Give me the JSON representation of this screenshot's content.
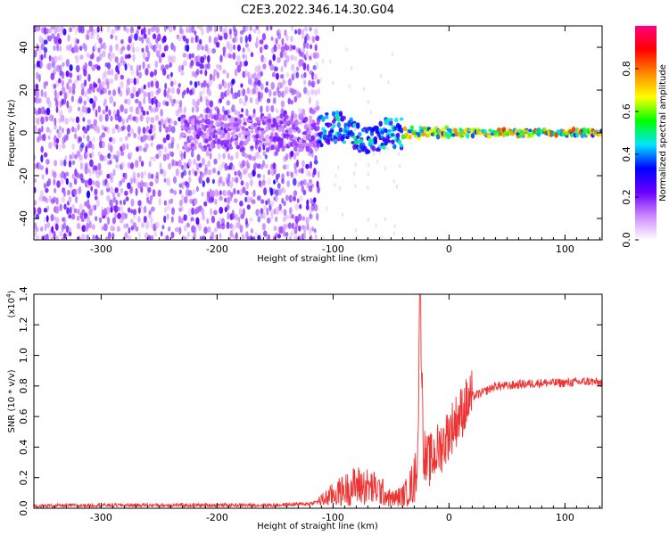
{
  "title": "C2E3.2022.346.14.30.G04",
  "chart_data": [
    {
      "type": "heatmap",
      "xlabel": "Height of straight line (km)",
      "ylabel": "Frequency (Hz)",
      "xlim": [
        -358,
        132
      ],
      "ylim": [
        -50,
        50
      ],
      "x_ticks": [
        -300,
        -200,
        -100,
        0,
        100
      ],
      "y_ticks": [
        -40,
        -20,
        0,
        20,
        40
      ],
      "colorbar": {
        "label": "Normalized spectral amplitude",
        "range": [
          0,
          1
        ],
        "ticks": [
          "0.0",
          "0.2",
          "0.4",
          "0.6",
          "0.8"
        ],
        "colors": [
          "#ffffff",
          "#cc88ff",
          "#6a00ff",
          "#0000ff",
          "#00e5ff",
          "#00ff00",
          "#ffff00",
          "#ff8800",
          "#ff0000",
          "#ff007f"
        ]
      },
      "description_points": {
        "noise_region_x": [
          -358,
          -112
        ],
        "signal_ridge_freq": 0,
        "ridge_peak_x": [
          -60,
          100
        ]
      }
    },
    {
      "type": "line",
      "xlabel": "Height of straight line (km)",
      "ylabel": "SNR (10 * v/v)",
      "scale_label": "(x10",
      "scale_exp": "4",
      "scale_suffix": ")",
      "xlim": [
        -358,
        132
      ],
      "ylim": [
        0,
        1.4
      ],
      "x_ticks": [
        -300,
        -200,
        -100,
        0,
        100
      ],
      "y_ticks": [
        "0.0",
        "0.2",
        "0.4",
        "0.6",
        "0.8",
        "1.0",
        "1.2",
        "1.4"
      ],
      "color": "#ee3333",
      "series": [
        {
          "x": [
            -358,
            -300,
            -250,
            -200,
            -150,
            -120,
            -110,
            -100,
            -90,
            -80,
            -70,
            -60,
            -50,
            -40,
            -35,
            -30,
            -27,
            -25,
            -22,
            -20,
            -15,
            -10,
            -5,
            0,
            5,
            10,
            15,
            20,
            30,
            40,
            50,
            60,
            80,
            100,
            120,
            132
          ],
          "y": [
            0.015,
            0.02,
            0.02,
            0.02,
            0.02,
            0.03,
            0.05,
            0.09,
            0.12,
            0.15,
            0.14,
            0.12,
            0.06,
            0.08,
            0.12,
            0.18,
            0.35,
            1.4,
            0.4,
            0.3,
            0.32,
            0.38,
            0.42,
            0.5,
            0.56,
            0.62,
            0.68,
            0.73,
            0.76,
            0.8,
            0.8,
            0.81,
            0.82,
            0.82,
            0.83,
            0.82
          ]
        }
      ]
    }
  ]
}
